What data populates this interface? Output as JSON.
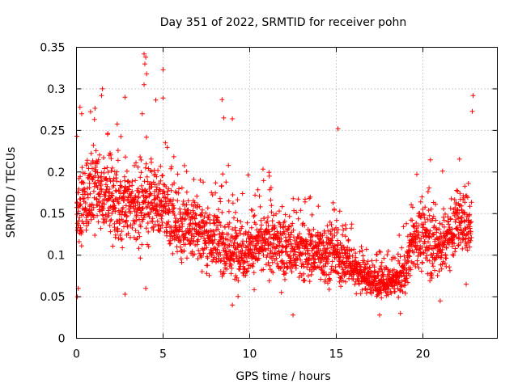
{
  "chart_data": {
    "type": "scatter",
    "title": "Day 351 of 2022, SRMTID for receiver pohn",
    "xlabel": "GPS time / hours",
    "ylabel": "SRMTID / TECUs",
    "xlim": [
      0,
      24.3
    ],
    "ylim": [
      0,
      0.35
    ],
    "xticks": [
      0,
      5,
      10,
      15,
      20
    ],
    "xtick_labels": [
      "0",
      "5",
      "10",
      "15",
      "20"
    ],
    "yticks": [
      0,
      0.05,
      0.1,
      0.15,
      0.2,
      0.25,
      0.3,
      0.35
    ],
    "ytick_labels": [
      "0",
      "0.05",
      "0.1",
      "0.15",
      "0.2",
      "0.25",
      "0.3",
      "0.35"
    ],
    "grid": true,
    "marker": "plus",
    "color": "#ff0000",
    "x_range_hours": [
      0,
      22.8
    ],
    "series": [
      {
        "name": "SRMTID",
        "trend": [
          {
            "x": 0.0,
            "y": 0.14
          },
          {
            "x": 0.5,
            "y": 0.17
          },
          {
            "x": 1.0,
            "y": 0.175
          },
          {
            "x": 2.0,
            "y": 0.17
          },
          {
            "x": 3.0,
            "y": 0.155
          },
          {
            "x": 4.0,
            "y": 0.165
          },
          {
            "x": 5.0,
            "y": 0.16
          },
          {
            "x": 6.0,
            "y": 0.135
          },
          {
            "x": 7.0,
            "y": 0.13
          },
          {
            "x": 8.0,
            "y": 0.12
          },
          {
            "x": 9.0,
            "y": 0.105
          },
          {
            "x": 10.0,
            "y": 0.11
          },
          {
            "x": 11.0,
            "y": 0.115
          },
          {
            "x": 12.0,
            "y": 0.11
          },
          {
            "x": 13.0,
            "y": 0.1
          },
          {
            "x": 14.0,
            "y": 0.105
          },
          {
            "x": 15.0,
            "y": 0.1
          },
          {
            "x": 16.0,
            "y": 0.085
          },
          {
            "x": 17.0,
            "y": 0.07
          },
          {
            "x": 18.0,
            "y": 0.065
          },
          {
            "x": 19.0,
            "y": 0.08
          },
          {
            "x": 19.5,
            "y": 0.12
          },
          {
            "x": 20.0,
            "y": 0.12
          },
          {
            "x": 21.0,
            "y": 0.11
          },
          {
            "x": 22.0,
            "y": 0.14
          },
          {
            "x": 22.8,
            "y": 0.14
          }
        ],
        "spread": [
          {
            "x": 0.0,
            "s": 0.04
          },
          {
            "x": 4.0,
            "s": 0.045
          },
          {
            "x": 6.0,
            "s": 0.035
          },
          {
            "x": 10.0,
            "s": 0.035
          },
          {
            "x": 15.0,
            "s": 0.03
          },
          {
            "x": 16.0,
            "s": 0.02
          },
          {
            "x": 18.5,
            "s": 0.015
          },
          {
            "x": 19.5,
            "s": 0.035
          },
          {
            "x": 22.8,
            "s": 0.035
          }
        ],
        "notable_points": [
          {
            "x": 3.9,
            "y": 0.342
          },
          {
            "x": 4.0,
            "y": 0.338
          },
          {
            "x": 3.95,
            "y": 0.33
          },
          {
            "x": 4.05,
            "y": 0.318
          },
          {
            "x": 5.0,
            "y": 0.323
          },
          {
            "x": 3.9,
            "y": 0.305
          },
          {
            "x": 1.5,
            "y": 0.3
          },
          {
            "x": 1.45,
            "y": 0.292
          },
          {
            "x": 2.8,
            "y": 0.29
          },
          {
            "x": 5.0,
            "y": 0.289
          },
          {
            "x": 8.4,
            "y": 0.287
          },
          {
            "x": 22.9,
            "y": 0.292
          },
          {
            "x": 22.85,
            "y": 0.273
          },
          {
            "x": 3.8,
            "y": 0.27
          },
          {
            "x": 8.5,
            "y": 0.265
          },
          {
            "x": 9.0,
            "y": 0.264
          },
          {
            "x": 15.1,
            "y": 0.252
          },
          {
            "x": 0.2,
            "y": 0.278
          },
          {
            "x": 0.3,
            "y": 0.27
          },
          {
            "x": 12.5,
            "y": 0.028
          },
          {
            "x": 17.5,
            "y": 0.028
          },
          {
            "x": 18.7,
            "y": 0.03
          },
          {
            "x": 0.05,
            "y": 0.05
          },
          {
            "x": 0.1,
            "y": 0.06
          },
          {
            "x": 2.8,
            "y": 0.053
          },
          {
            "x": 4.0,
            "y": 0.06
          },
          {
            "x": 9.0,
            "y": 0.04
          },
          {
            "x": 21.0,
            "y": 0.045
          },
          {
            "x": 22.5,
            "y": 0.065
          }
        ]
      }
    ]
  }
}
